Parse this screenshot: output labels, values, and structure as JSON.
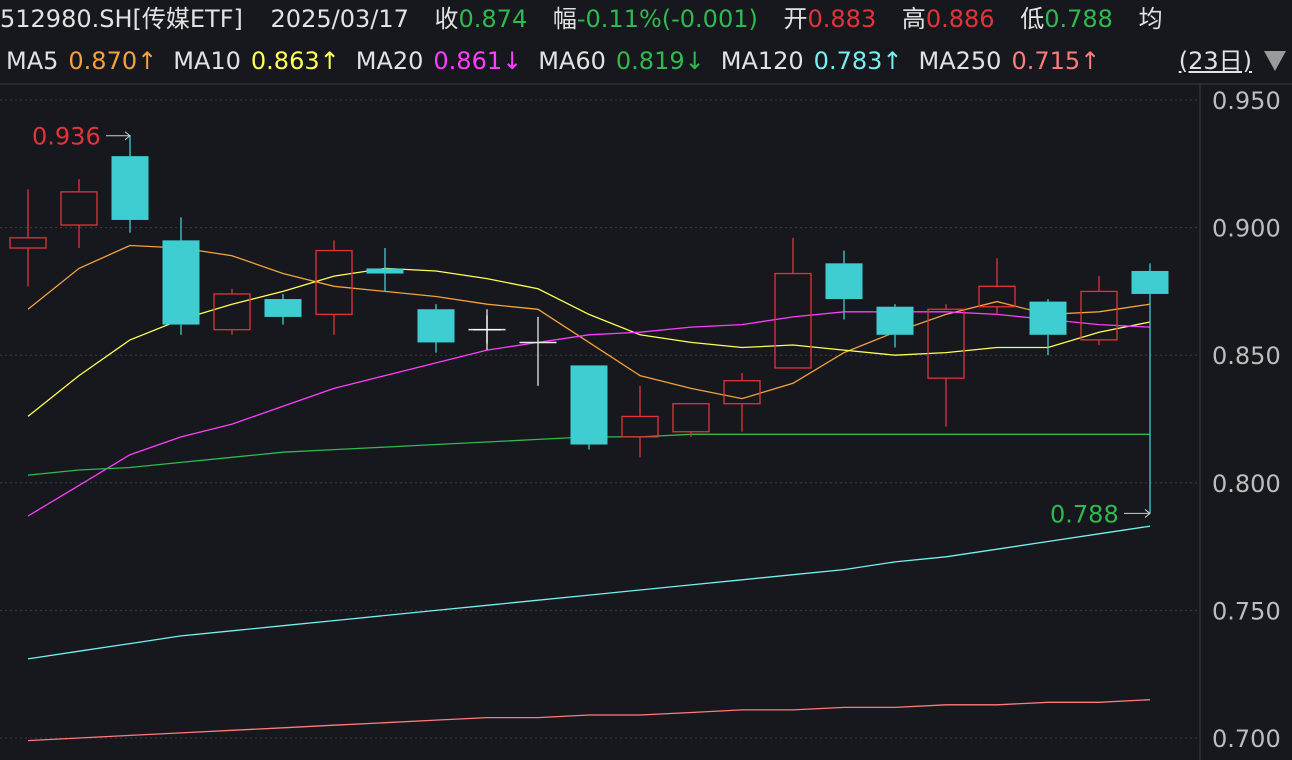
{
  "header": {
    "symbol": "512980.SH[传媒ETF]",
    "date": "2025/03/17",
    "close_label": "收",
    "close_value": "0.874",
    "change_label": "幅",
    "change_value": "-0.11%(-0.001)",
    "open_label": "开",
    "open_value": "0.883",
    "high_label": "高",
    "high_value": "0.886",
    "low_label": "低",
    "low_value": "0.788",
    "avg_label": "均"
  },
  "ma_bar": {
    "items": [
      {
        "label": "MA5",
        "value": "0.870↑",
        "color": "#f3a13c"
      },
      {
        "label": "MA10",
        "value": "0.863↑",
        "color": "#ffff55"
      },
      {
        "label": "MA20",
        "value": "0.861↓",
        "color": "#ff3cff"
      },
      {
        "label": "MA60",
        "value": "0.819↓",
        "color": "#2fba4f"
      },
      {
        "label": "MA120",
        "value": "0.783↑",
        "color": "#74f0f0"
      },
      {
        "label": "MA250",
        "value": "0.715↑",
        "color": "#ff7b7b"
      }
    ],
    "period": "(23日)"
  },
  "colors": {
    "up": "#e0343a",
    "down": "#3ecdd0",
    "grid": "#3a3d44",
    "background": "#16181d"
  },
  "chart_data": {
    "type": "candlestick",
    "ylim": [
      0.695,
      0.957
    ],
    "yticks": [
      "0.950",
      "0.900",
      "0.850",
      "0.800",
      "0.750",
      "0.700"
    ],
    "candles": [
      {
        "o": 0.892,
        "c": 0.896,
        "h": 0.915,
        "l": 0.877
      },
      {
        "o": 0.901,
        "c": 0.914,
        "h": 0.919,
        "l": 0.892
      },
      {
        "o": 0.928,
        "c": 0.903,
        "h": 0.936,
        "l": 0.898
      },
      {
        "o": 0.895,
        "c": 0.862,
        "h": 0.904,
        "l": 0.858
      },
      {
        "o": 0.86,
        "c": 0.874,
        "h": 0.876,
        "l": 0.858
      },
      {
        "o": 0.872,
        "c": 0.865,
        "h": 0.874,
        "l": 0.862
      },
      {
        "o": 0.866,
        "c": 0.891,
        "h": 0.895,
        "l": 0.858
      },
      {
        "o": 0.884,
        "c": 0.882,
        "h": 0.892,
        "l": 0.875
      },
      {
        "o": 0.868,
        "c": 0.855,
        "h": 0.87,
        "l": 0.851
      },
      {
        "o": 0.86,
        "c": 0.86,
        "h": 0.868,
        "l": 0.852
      },
      {
        "o": 0.855,
        "c": 0.855,
        "h": 0.865,
        "l": 0.838
      },
      {
        "o": 0.846,
        "c": 0.815,
        "h": 0.846,
        "l": 0.813
      },
      {
        "o": 0.818,
        "c": 0.826,
        "h": 0.838,
        "l": 0.81
      },
      {
        "o": 0.82,
        "c": 0.831,
        "h": 0.831,
        "l": 0.818
      },
      {
        "o": 0.831,
        "c": 0.84,
        "h": 0.843,
        "l": 0.82
      },
      {
        "o": 0.845,
        "c": 0.882,
        "h": 0.896,
        "l": 0.845
      },
      {
        "o": 0.886,
        "c": 0.872,
        "h": 0.891,
        "l": 0.864
      },
      {
        "o": 0.869,
        "c": 0.858,
        "h": 0.87,
        "l": 0.853
      },
      {
        "o": 0.841,
        "c": 0.868,
        "h": 0.87,
        "l": 0.822
      },
      {
        "o": 0.869,
        "c": 0.877,
        "h": 0.888,
        "l": 0.866
      },
      {
        "o": 0.871,
        "c": 0.858,
        "h": 0.872,
        "l": 0.85
      },
      {
        "o": 0.856,
        "c": 0.875,
        "h": 0.881,
        "l": 0.854
      },
      {
        "o": 0.883,
        "c": 0.874,
        "h": 0.886,
        "l": 0.788
      }
    ],
    "ma_lines": [
      {
        "name": "MA5",
        "color": "#f3a13c",
        "values": [
          0.868,
          0.884,
          0.893,
          0.892,
          0.889,
          0.882,
          0.877,
          0.875,
          0.873,
          0.87,
          0.868,
          0.855,
          0.842,
          0.837,
          0.833,
          0.839,
          0.851,
          0.859,
          0.866,
          0.871,
          0.866,
          0.867,
          0.87
        ]
      },
      {
        "name": "MA10",
        "color": "#ffff55",
        "values": [
          0.826,
          0.842,
          0.856,
          0.864,
          0.87,
          0.875,
          0.881,
          0.884,
          0.883,
          0.88,
          0.876,
          0.866,
          0.858,
          0.855,
          0.853,
          0.854,
          0.852,
          0.85,
          0.851,
          0.853,
          0.853,
          0.859,
          0.863
        ]
      },
      {
        "name": "MA20",
        "color": "#ff3cff",
        "values": [
          0.787,
          0.799,
          0.811,
          0.818,
          0.823,
          0.83,
          0.837,
          0.842,
          0.847,
          0.852,
          0.855,
          0.858,
          0.859,
          0.861,
          0.862,
          0.865,
          0.867,
          0.867,
          0.867,
          0.866,
          0.864,
          0.862,
          0.861
        ]
      },
      {
        "name": "MA60",
        "color": "#2fba4f",
        "values": [
          0.803,
          0.805,
          0.806,
          0.808,
          0.81,
          0.812,
          0.813,
          0.814,
          0.815,
          0.816,
          0.817,
          0.818,
          0.818,
          0.819,
          0.819,
          0.819,
          0.819,
          0.819,
          0.819,
          0.819,
          0.819,
          0.819,
          0.819
        ]
      },
      {
        "name": "MA120",
        "color": "#74f0f0",
        "values": [
          0.731,
          0.734,
          0.737,
          0.74,
          0.742,
          0.744,
          0.746,
          0.748,
          0.75,
          0.752,
          0.754,
          0.756,
          0.758,
          0.76,
          0.762,
          0.764,
          0.766,
          0.769,
          0.771,
          0.774,
          0.777,
          0.78,
          0.783
        ]
      },
      {
        "name": "MA250",
        "color": "#ff7b7b",
        "values": [
          0.699,
          0.7,
          0.701,
          0.702,
          0.703,
          0.704,
          0.705,
          0.706,
          0.707,
          0.708,
          0.708,
          0.709,
          0.709,
          0.71,
          0.711,
          0.711,
          0.712,
          0.712,
          0.713,
          0.713,
          0.714,
          0.714,
          0.715
        ]
      }
    ],
    "annotations": [
      {
        "text": "0.936",
        "value": 0.936,
        "index": 2,
        "color": "#e0343a"
      },
      {
        "text": "0.788",
        "value": 0.788,
        "index": 22,
        "color": "#2fba4f"
      }
    ],
    "crosshair": {
      "index": 9,
      "value": 0.86
    }
  }
}
